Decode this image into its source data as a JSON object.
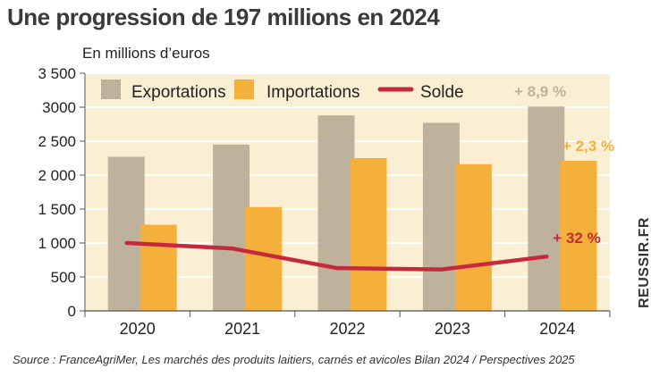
{
  "title": "Une progression de 197 millions en 2024",
  "unit_label": "En millions d’euros",
  "source": "Source : FranceAgriMer, Les marchés des produits laitiers, carnés et avicoles Bilan 2024 / Perspectives 2025",
  "credit": "REUSSIR.FR",
  "colors": {
    "exports": "#bfb29d",
    "imports": "#f4b03a",
    "solde": "#c4293c",
    "plot_bg": "#fbefd3",
    "grid": "#ffffff"
  },
  "chart_data": {
    "type": "bar",
    "categories": [
      "2020",
      "2021",
      "2022",
      "2023",
      "2024"
    ],
    "series": [
      {
        "name": "Exportations",
        "type": "bar",
        "values": [
          2270,
          2450,
          2880,
          2770,
          3010
        ]
      },
      {
        "name": "Importations",
        "type": "bar",
        "values": [
          1270,
          1530,
          2250,
          2160,
          2210
        ]
      },
      {
        "name": "Solde",
        "type": "line",
        "values": [
          1000,
          920,
          630,
          610,
          800
        ]
      }
    ],
    "ylim": [
      0,
      3500
    ],
    "yticks": [
      0,
      500,
      1000,
      1500,
      2000,
      2500,
      3000,
      3500
    ],
    "ytick_labels": [
      "0",
      "500",
      "1 000",
      "1 500",
      "2 000",
      "2 500",
      "3000",
      "3 500"
    ],
    "grid": true,
    "legend_position": "top",
    "annotations": [
      {
        "series": "Exportations",
        "text": "+ 8,9 %"
      },
      {
        "series": "Importations",
        "text": "+ 2,3 %"
      },
      {
        "series": "Solde",
        "text": "+ 32 %"
      }
    ]
  }
}
